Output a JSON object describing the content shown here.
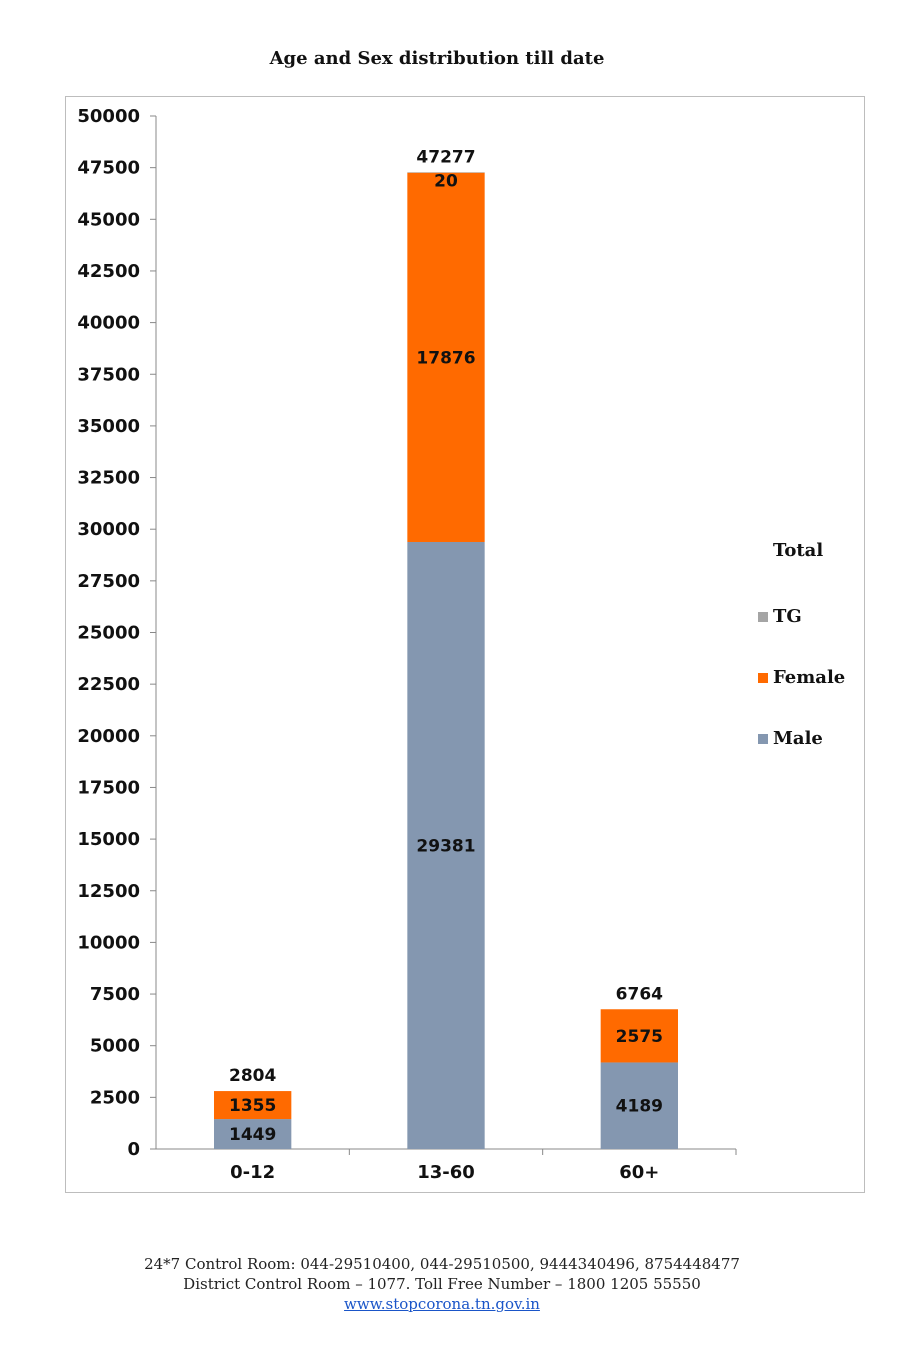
{
  "chart_data": {
    "type": "bar",
    "stacked": true,
    "title": "Age and Sex distribution till date",
    "categories": [
      "0-12",
      "13-60",
      "60+"
    ],
    "series": [
      {
        "name": "Male",
        "color": "#8497b0",
        "values": [
          1449,
          29381,
          4189
        ]
      },
      {
        "name": "Female",
        "color": "#ff6a00",
        "values": [
          1355,
          17876,
          2575
        ]
      },
      {
        "name": "TG",
        "color": "#a5a5a5",
        "values": [
          0,
          20,
          0
        ]
      }
    ],
    "totals": [
      2804,
      47277,
      6764
    ],
    "segment_labels": [
      [
        "1449",
        "1355",
        ""
      ],
      [
        "29381",
        "17876",
        "20"
      ],
      [
        "4189",
        "2575",
        ""
      ]
    ],
    "ylim": [
      0,
      50000
    ],
    "yticks": [
      "0",
      "2500",
      "5000",
      "7500",
      "10000",
      "12500",
      "15000",
      "17500",
      "20000",
      "22500",
      "25000",
      "27500",
      "30000",
      "32500",
      "35000",
      "37500",
      "40000",
      "42500",
      "45000",
      "47500",
      "50000"
    ],
    "xlabel": "",
    "ylabel": "",
    "grid": false,
    "legend": {
      "title": "Total",
      "position": "right",
      "items": [
        {
          "label": "TG",
          "color": "#a5a5a5"
        },
        {
          "label": "Female",
          "color": "#ff6a00"
        },
        {
          "label": "Male",
          "color": "#8497b0"
        }
      ]
    }
  },
  "footer": {
    "line1": "24*7 Control Room: 044-29510400, 044-29510500, 9444340496, 8754448477",
    "line2": "District Control Room – 1077. Toll Free Number – 1800 1205 55550",
    "link": "www.stopcorona.tn.gov.in"
  }
}
